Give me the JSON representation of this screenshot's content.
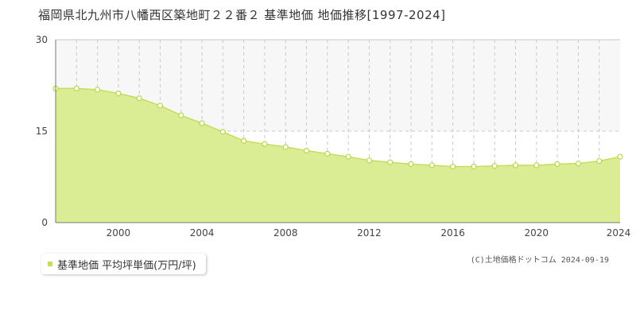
{
  "page": {
    "title": "福岡県北九州市八幡西区築地町２２番２ 基準地価 地価推移[1997-2024]",
    "legend_label": "基準地価 平均坪単価(万円/坪)",
    "credit": "(C)土地価格ドットコム 2024-09-19"
  },
  "colors": {
    "area_fill": "#dbed94",
    "line": "#c4de5a",
    "marker_fill": "#ffffff",
    "marker_stroke": "#b8d64a",
    "grid": "#c8c8c8",
    "band": "#f7f7f7"
  },
  "chart_data": {
    "type": "area",
    "title": "福岡県北九州市八幡西区築地町２２番２ 基準地価 地価推移[1997-2024]",
    "xlabel": "",
    "ylabel": "",
    "xlim": [
      1997,
      2024
    ],
    "ylim": [
      0,
      30
    ],
    "x_ticks": [
      2000,
      2004,
      2008,
      2012,
      2016,
      2020,
      2024
    ],
    "y_ticks": [
      0,
      15,
      30
    ],
    "grid": true,
    "legend_position": "bottom-left",
    "series": [
      {
        "name": "基準地価 平均坪単価(万円/坪)",
        "x": [
          1997,
          1998,
          1999,
          2000,
          2001,
          2002,
          2003,
          2004,
          2005,
          2006,
          2007,
          2008,
          2009,
          2010,
          2011,
          2012,
          2013,
          2014,
          2015,
          2016,
          2017,
          2018,
          2019,
          2020,
          2021,
          2022,
          2023,
          2024
        ],
        "values": [
          22.0,
          22.0,
          21.8,
          21.2,
          20.4,
          19.2,
          17.6,
          16.3,
          14.9,
          13.4,
          12.9,
          12.4,
          11.8,
          11.3,
          10.8,
          10.2,
          9.9,
          9.6,
          9.4,
          9.2,
          9.2,
          9.3,
          9.4,
          9.4,
          9.6,
          9.7,
          10.1,
          10.8
        ]
      }
    ]
  }
}
